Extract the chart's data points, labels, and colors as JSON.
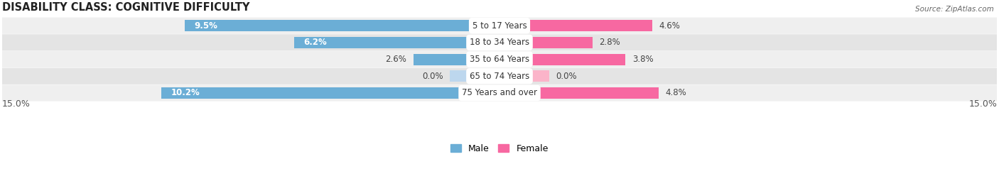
{
  "title": "DISABILITY CLASS: COGNITIVE DIFFICULTY",
  "source": "Source: ZipAtlas.com",
  "categories": [
    "5 to 17 Years",
    "18 to 34 Years",
    "35 to 64 Years",
    "65 to 74 Years",
    "75 Years and over"
  ],
  "male_values": [
    9.5,
    6.2,
    2.6,
    0.0,
    10.2
  ],
  "female_values": [
    4.6,
    2.8,
    3.8,
    0.0,
    4.8
  ],
  "male_zero_display": [
    false,
    false,
    false,
    true,
    false
  ],
  "female_zero_display": [
    false,
    false,
    false,
    true,
    false
  ],
  "x_max": 15.0,
  "male_color": "#6baed6",
  "male_color_light": "#bdd7ee",
  "female_color": "#f768a1",
  "female_color_light": "#fbb4c9",
  "row_bg_even": "#efefef",
  "row_bg_odd": "#e4e4e4",
  "label_fontsize": 8.5,
  "title_fontsize": 10.5,
  "legend_fontsize": 9,
  "axis_label_fontsize": 9,
  "zero_display_value": 1.5
}
